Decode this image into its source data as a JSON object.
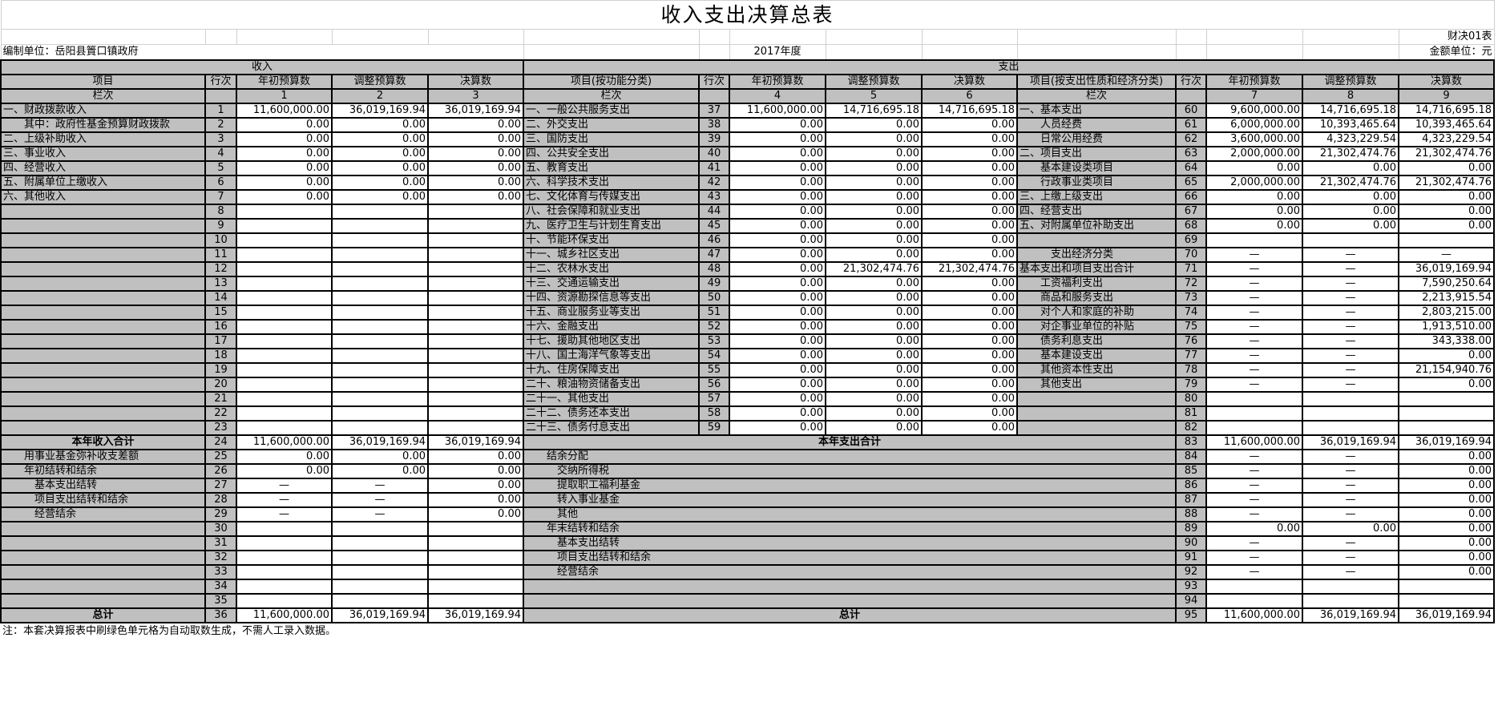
{
  "title": "收入支出决算总表",
  "form_code": "财决01表",
  "unit_label": "编制单位：岳阳县篢口镇政府",
  "year": "2017年度",
  "currency_unit": "金额单位：元",
  "colors": {
    "header_gray": "#c0c0c0",
    "border": "#000000"
  },
  "header": {
    "income": "收入",
    "expense": "支出",
    "columns": [
      "项目",
      "行次",
      "年初预算数",
      "调整预算数",
      "决算数",
      "项目(按功能分类)",
      "行次",
      "年初预算数",
      "调整预算数",
      "决算数",
      "项目(按支出性质和经济分类)",
      "行次",
      "年初预算数",
      "调整预算数",
      "决算数"
    ],
    "column_numbers": [
      "栏次",
      "",
      "1",
      "2",
      "3",
      "栏次",
      "",
      "4",
      "5",
      "6",
      "栏次",
      "",
      "7",
      "8",
      "9"
    ]
  },
  "income_rows": [
    [
      "一、财政拨款收入",
      "1",
      "11,600,000.00",
      "36,019,169.94",
      "36,019,169.94"
    ],
    [
      "　　其中：政府性基金预算财政拨款",
      "2",
      "0.00",
      "0.00",
      "0.00"
    ],
    [
      "二、上级补助收入",
      "3",
      "0.00",
      "0.00",
      "0.00"
    ],
    [
      "三、事业收入",
      "4",
      "0.00",
      "0.00",
      "0.00"
    ],
    [
      "四、经营收入",
      "5",
      "0.00",
      "0.00",
      "0.00"
    ],
    [
      "五、附属单位上缴收入",
      "6",
      "0.00",
      "0.00",
      "0.00"
    ],
    [
      "六、其他收入",
      "7",
      "0.00",
      "0.00",
      "0.00"
    ],
    [
      "",
      "8",
      "",
      "",
      ""
    ],
    [
      "",
      "9",
      "",
      "",
      ""
    ],
    [
      "",
      "10",
      "",
      "",
      ""
    ],
    [
      "",
      "11",
      "",
      "",
      ""
    ],
    [
      "",
      "12",
      "",
      "",
      ""
    ],
    [
      "",
      "13",
      "",
      "",
      ""
    ],
    [
      "",
      "14",
      "",
      "",
      ""
    ],
    [
      "",
      "15",
      "",
      "",
      ""
    ],
    [
      "",
      "16",
      "",
      "",
      ""
    ],
    [
      "",
      "17",
      "",
      "",
      ""
    ],
    [
      "",
      "18",
      "",
      "",
      ""
    ],
    [
      "",
      "19",
      "",
      "",
      ""
    ],
    [
      "",
      "20",
      "",
      "",
      ""
    ],
    [
      "",
      "21",
      "",
      "",
      ""
    ],
    [
      "",
      "22",
      "",
      "",
      ""
    ],
    [
      "",
      "23",
      "",
      "",
      ""
    ],
    [
      "本年收入合计",
      "24",
      "11,600,000.00",
      "36,019,169.94",
      "36,019,169.94"
    ],
    [
      "　　用事业基金弥补收支差额",
      "25",
      "0.00",
      "0.00",
      "0.00"
    ],
    [
      "　　年初结转和结余",
      "26",
      "0.00",
      "0.00",
      "0.00"
    ],
    [
      "　　　基本支出结转",
      "27",
      "—",
      "—",
      "0.00"
    ],
    [
      "　　　项目支出结转和结余",
      "28",
      "—",
      "—",
      "0.00"
    ],
    [
      "　　　经营结余",
      "29",
      "—",
      "—",
      "0.00"
    ],
    [
      "",
      "30",
      "",
      "",
      ""
    ],
    [
      "",
      "31",
      "",
      "",
      ""
    ],
    [
      "",
      "32",
      "",
      "",
      ""
    ],
    [
      "",
      "33",
      "",
      "",
      ""
    ],
    [
      "",
      "34",
      "",
      "",
      ""
    ],
    [
      "",
      "35",
      "",
      "",
      ""
    ],
    [
      "总计",
      "36",
      "11,600,000.00",
      "36,019,169.94",
      "36,019,169.94"
    ]
  ],
  "function_rows": [
    [
      "一、一般公共服务支出",
      "37",
      "11,600,000.00",
      "14,716,695.18",
      "14,716,695.18"
    ],
    [
      "二、外交支出",
      "38",
      "0.00",
      "0.00",
      "0.00"
    ],
    [
      "三、国防支出",
      "39",
      "0.00",
      "0.00",
      "0.00"
    ],
    [
      "四、公共安全支出",
      "40",
      "0.00",
      "0.00",
      "0.00"
    ],
    [
      "五、教育支出",
      "41",
      "0.00",
      "0.00",
      "0.00"
    ],
    [
      "六、科学技术支出",
      "42",
      "0.00",
      "0.00",
      "0.00"
    ],
    [
      "七、文化体育与传媒支出",
      "43",
      "0.00",
      "0.00",
      "0.00"
    ],
    [
      "八、社会保障和就业支出",
      "44",
      "0.00",
      "0.00",
      "0.00"
    ],
    [
      "九、医疗卫生与计划生育支出",
      "45",
      "0.00",
      "0.00",
      "0.00"
    ],
    [
      "十、节能环保支出",
      "46",
      "0.00",
      "0.00",
      "0.00"
    ],
    [
      "十一、城乡社区支出",
      "47",
      "0.00",
      "0.00",
      "0.00"
    ],
    [
      "十二、农林水支出",
      "48",
      "0.00",
      "21,302,474.76",
      "21,302,474.76"
    ],
    [
      "十三、交通运输支出",
      "49",
      "0.00",
      "0.00",
      "0.00"
    ],
    [
      "十四、资源勘探信息等支出",
      "50",
      "0.00",
      "0.00",
      "0.00"
    ],
    [
      "十五、商业服务业等支出",
      "51",
      "0.00",
      "0.00",
      "0.00"
    ],
    [
      "十六、金融支出",
      "52",
      "0.00",
      "0.00",
      "0.00"
    ],
    [
      "十七、援助其他地区支出",
      "53",
      "0.00",
      "0.00",
      "0.00"
    ],
    [
      "十八、国土海洋气象等支出",
      "54",
      "0.00",
      "0.00",
      "0.00"
    ],
    [
      "十九、住房保障支出",
      "55",
      "0.00",
      "0.00",
      "0.00"
    ],
    [
      "二十、粮油物资储备支出",
      "56",
      "0.00",
      "0.00",
      "0.00"
    ],
    [
      "二十一、其他支出",
      "57",
      "0.00",
      "0.00",
      "0.00"
    ],
    [
      "二十二、债务还本支出",
      "58",
      "0.00",
      "0.00",
      "0.00"
    ],
    [
      "二十三、债务付息支出",
      "59",
      "0.00",
      "0.00",
      "0.00"
    ]
  ],
  "expense_bottom_labels": [
    "本年支出合计",
    "　　结余分配",
    "　　　交纳所得税",
    "　　　提取职工福利基金",
    "　　　转入事业基金",
    "　　　其他",
    "　　年末结转和结余",
    "　　　基本支出结转",
    "　　　项目支出结转和结余",
    "　　　经营结余",
    "",
    "",
    "总计"
  ],
  "economic_rows": [
    [
      "一、基本支出",
      "60",
      "9,600,000.00",
      "14,716,695.18",
      "14,716,695.18"
    ],
    [
      "　　人员经费",
      "61",
      "6,000,000.00",
      "10,393,465.64",
      "10,393,465.64"
    ],
    [
      "　　日常公用经费",
      "62",
      "3,600,000.00",
      "4,323,229.54",
      "4,323,229.54"
    ],
    [
      "二、项目支出",
      "63",
      "2,000,000.00",
      "21,302,474.76",
      "21,302,474.76"
    ],
    [
      "　　基本建设类项目",
      "64",
      "0.00",
      "0.00",
      "0.00"
    ],
    [
      "　　行政事业类项目",
      "65",
      "2,000,000.00",
      "21,302,474.76",
      "21,302,474.76"
    ],
    [
      "三、上缴上级支出",
      "66",
      "0.00",
      "0.00",
      "0.00"
    ],
    [
      "四、经营支出",
      "67",
      "0.00",
      "0.00",
      "0.00"
    ],
    [
      "五、对附属单位补助支出",
      "68",
      "0.00",
      "0.00",
      "0.00"
    ],
    [
      "",
      "69",
      "",
      "",
      ""
    ],
    [
      "　　　支出经济分类",
      "70",
      "—",
      "—",
      "—"
    ],
    [
      "基本支出和项目支出合计",
      "71",
      "—",
      "—",
      "36,019,169.94"
    ],
    [
      "　　工资福利支出",
      "72",
      "—",
      "—",
      "7,590,250.64"
    ],
    [
      "　　商品和服务支出",
      "73",
      "—",
      "—",
      "2,213,915.54"
    ],
    [
      "　　对个人和家庭的补助",
      "74",
      "—",
      "—",
      "2,803,215.00"
    ],
    [
      "　　对企事业单位的补贴",
      "75",
      "—",
      "—",
      "1,913,510.00"
    ],
    [
      "　　债务利息支出",
      "76",
      "—",
      "—",
      "343,338.00"
    ],
    [
      "　　基本建设支出",
      "77",
      "—",
      "—",
      "0.00"
    ],
    [
      "　　其他资本性支出",
      "78",
      "—",
      "—",
      "21,154,940.76"
    ],
    [
      "　　其他支出",
      "79",
      "—",
      "—",
      "0.00"
    ],
    [
      "",
      "80",
      "",
      "",
      ""
    ],
    [
      "",
      "81",
      "",
      "",
      ""
    ],
    [
      "",
      "82",
      "",
      "",
      ""
    ],
    [
      "",
      "83",
      "11,600,000.00",
      "36,019,169.94",
      "36,019,169.94"
    ],
    [
      "",
      "84",
      "—",
      "—",
      "0.00"
    ],
    [
      "",
      "85",
      "—",
      "—",
      "0.00"
    ],
    [
      "",
      "86",
      "—",
      "—",
      "0.00"
    ],
    [
      "",
      "87",
      "—",
      "—",
      "0.00"
    ],
    [
      "",
      "88",
      "—",
      "—",
      "0.00"
    ],
    [
      "",
      "89",
      "0.00",
      "0.00",
      "0.00"
    ],
    [
      "",
      "90",
      "—",
      "—",
      "0.00"
    ],
    [
      "",
      "91",
      "—",
      "—",
      "0.00"
    ],
    [
      "",
      "92",
      "—",
      "—",
      "0.00"
    ],
    [
      "",
      "93",
      "",
      "",
      ""
    ],
    [
      "",
      "94",
      "",
      "",
      ""
    ],
    [
      "",
      "95",
      "11,600,000.00",
      "36,019,169.94",
      "36,019,169.94"
    ]
  ],
  "note": "注：本套决算报表中刷绿色单元格为自动取数生成，不需人工录入数据。"
}
